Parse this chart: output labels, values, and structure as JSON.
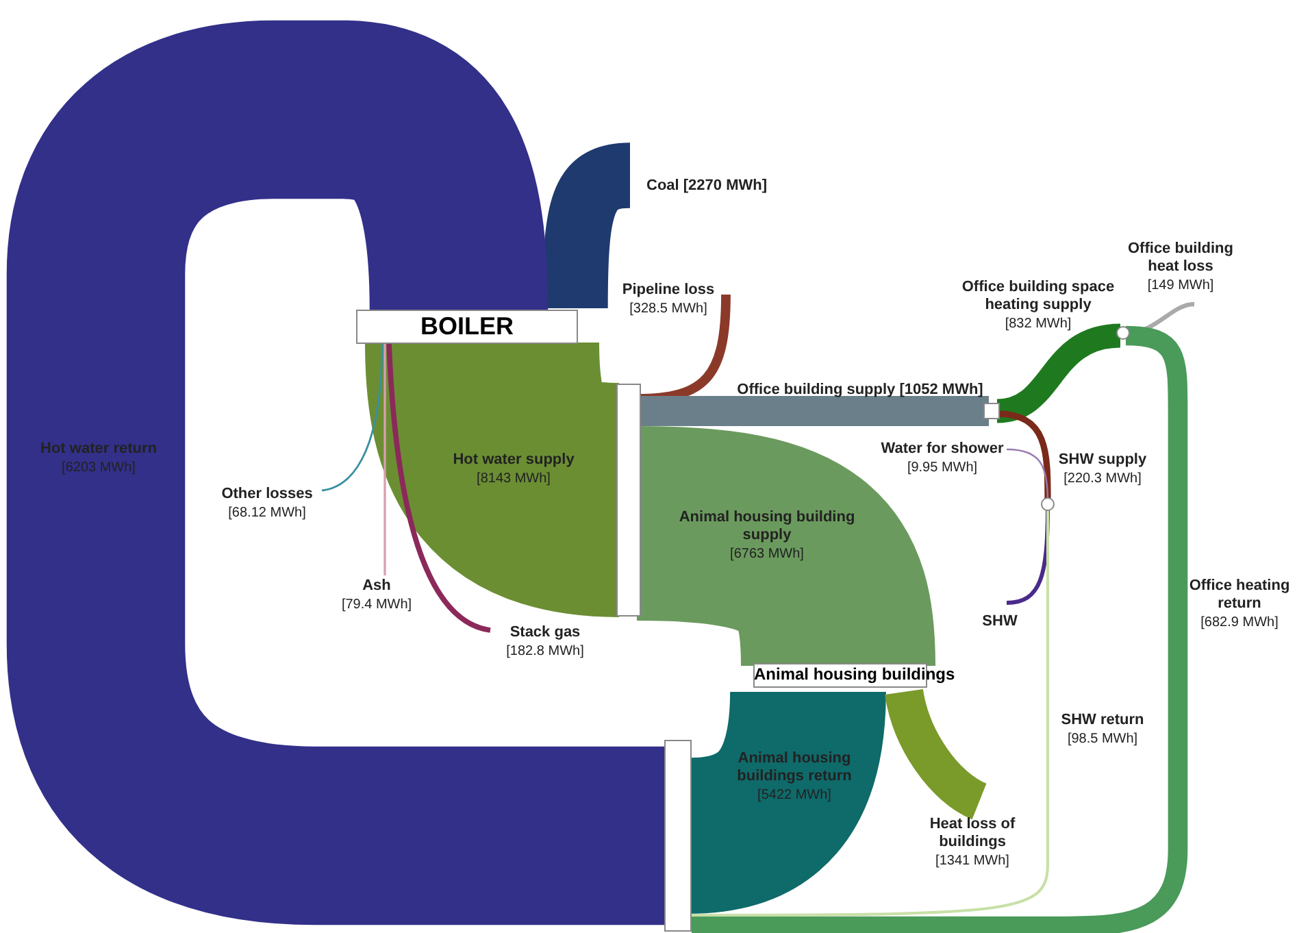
{
  "chart_data": {
    "type": "other",
    "categories": [
      "Coal",
      "Hot water return",
      "Hot water supply",
      "Other losses",
      "Ash",
      "Stack gas",
      "Pipeline loss",
      "Office building supply",
      "Animal housing building supply",
      "Animal housing buildings return",
      "Heat loss of buildings",
      "Office building space heating supply",
      "Office building heat loss",
      "Office heating return",
      "SHW supply",
      "Water for shower",
      "SHW",
      "SHW return"
    ],
    "values": [
      2270,
      6203,
      8143,
      68.12,
      79.4,
      182.8,
      328.5,
      1052,
      6763,
      5422,
      1341,
      832,
      149,
      682.9,
      220.3,
      9.95,
      null,
      98.5
    ],
    "value_labels": [
      "[2270 MWh]",
      "[6203 MWh]",
      "[8143 MWh]",
      "[68.12 MWh]",
      "[79.4 MWh]",
      "[182.8 MWh]",
      "[328.5 MWh]",
      "[1052 MWh]",
      "[6763 MWh]",
      "[5422 MWh]",
      "[1341 MWh]",
      "[832 MWh]",
      "[149 MWh]",
      "[682.9 MWh]",
      "[220.3 MWh]",
      "[9.95 MWh]",
      null,
      "[98.5 MWh]"
    ],
    "colors": [
      "#1f3a6e",
      "#33308a",
      "#6b8e33",
      "#3a8fa0",
      "#d8a0b0",
      "#8b2a5a",
      "#8b3a2a",
      "#6b7f8a",
      "#6b9a5e",
      "#0f6a6a",
      "#7a9a2a",
      "#1f7a1f",
      "#aaaaaa",
      "#4a9a5a",
      "#7a2a1a",
      "#9a7ab0",
      "#4a2a8a",
      "#c8e0a8"
    ],
    "annotations": [
      "BOILER",
      "Animal housing buildings"
    ]
  }
}
